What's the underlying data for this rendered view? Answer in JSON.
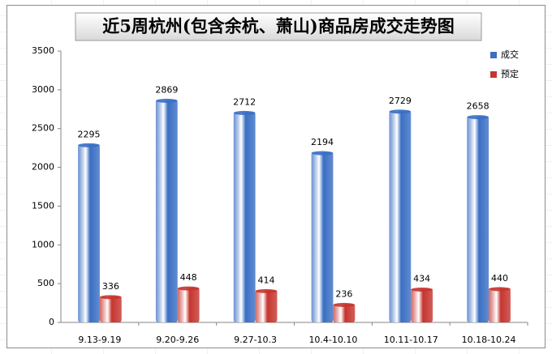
{
  "chart_data": {
    "type": "bar",
    "title": "近5周杭州(包含余杭、萧山)商品房成交走势图",
    "categories": [
      "9.13-9.19",
      "9.20-9.26",
      "9.27-10.3",
      "10.4-10.10",
      "10.11-10.17",
      "10.18-10.24"
    ],
    "series": [
      {
        "name": "成交",
        "color": "#3a6fc4",
        "values": [
          2295,
          2869,
          2712,
          2194,
          2729,
          2658
        ]
      },
      {
        "name": "预定",
        "color": "#c6352f",
        "values": [
          336,
          448,
          414,
          236,
          434,
          440
        ]
      }
    ],
    "ylim": [
      0,
      3500
    ],
    "yticks": [
      0,
      500,
      1000,
      1500,
      2000,
      2500,
      3000,
      3500
    ],
    "legend": "top-right"
  }
}
